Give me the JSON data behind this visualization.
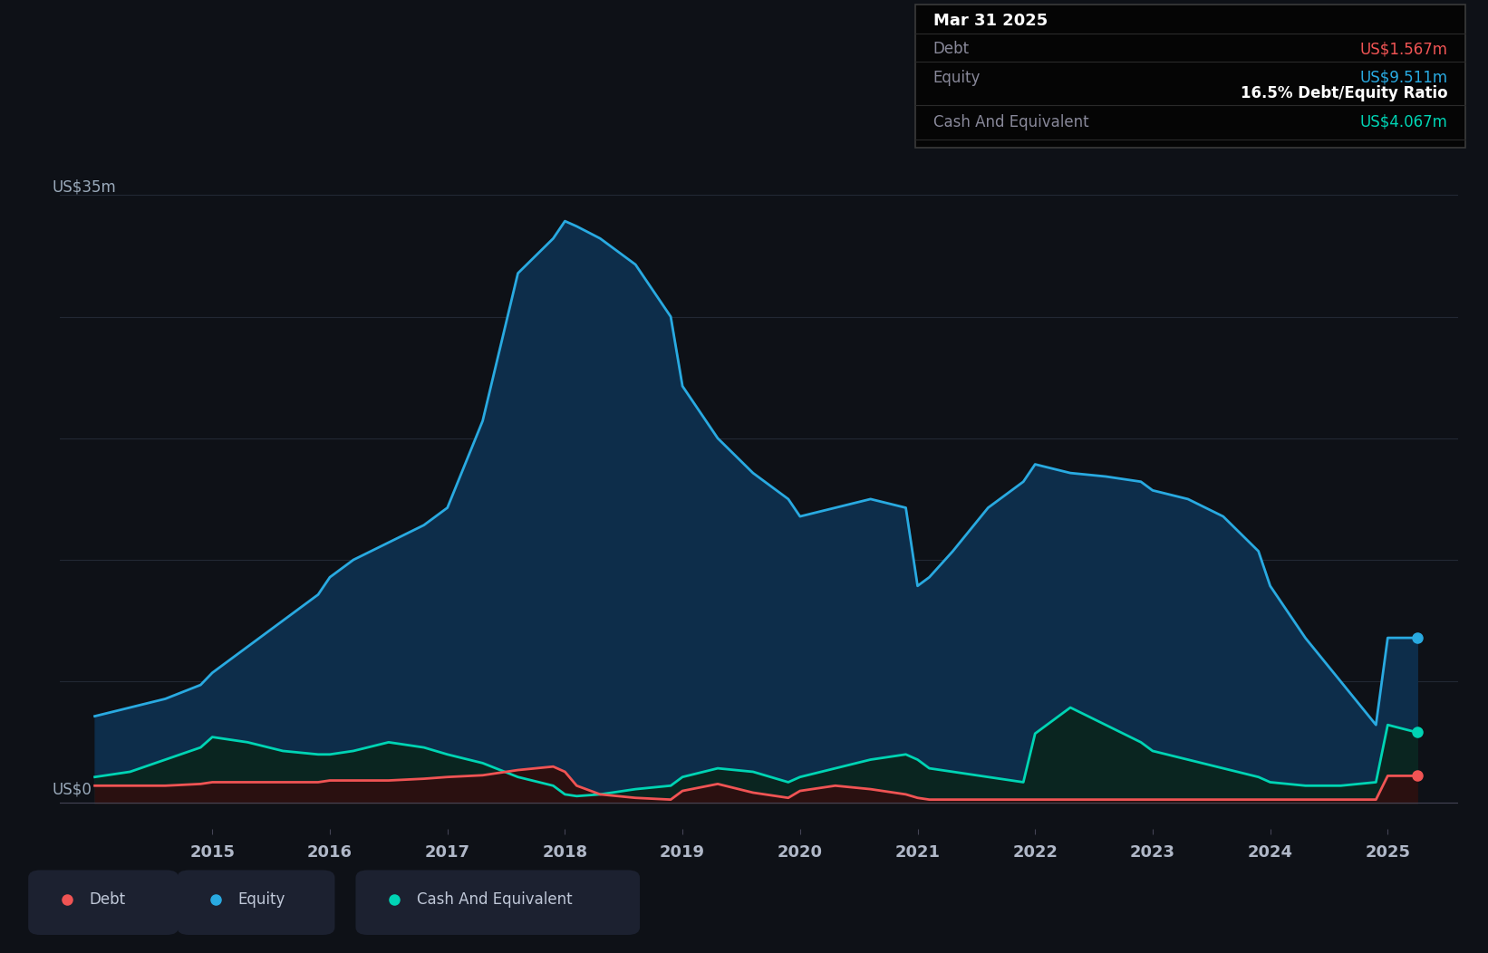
{
  "bg_color": "#0e1117",
  "plot_bg_color": "#0e1117",
  "ylabel_top": "US$35m",
  "ylabel_zero": "US$0",
  "x_min": 2013.7,
  "x_max": 2025.6,
  "y_min": -1.5,
  "y_max": 38,
  "grid_color": "#252b38",
  "equity_color": "#29aae1",
  "equity_fill": "#0d2d4a",
  "debt_color": "#f05454",
  "cash_color": "#00d4b4",
  "cash_fill": "#0a2520",
  "tooltip_bg": "#050505",
  "tooltip_title": "Mar 31 2025",
  "tooltip_debt_label": "Debt",
  "tooltip_debt_value": "US$1.567m",
  "tooltip_equity_label": "Equity",
  "tooltip_equity_value": "US$9.511m",
  "tooltip_ratio": "16.5% Debt/Equity Ratio",
  "tooltip_cash_label": "Cash And Equivalent",
  "tooltip_cash_value": "US$4.067m",
  "legend_bg": "#1c2130",
  "years": [
    2014.0,
    2014.3,
    2014.6,
    2014.9,
    2015.0,
    2015.3,
    2015.6,
    2015.9,
    2016.0,
    2016.2,
    2016.5,
    2016.8,
    2017.0,
    2017.3,
    2017.6,
    2017.9,
    2018.0,
    2018.1,
    2018.3,
    2018.6,
    2018.9,
    2019.0,
    2019.3,
    2019.6,
    2019.9,
    2020.0,
    2020.3,
    2020.6,
    2020.9,
    2021.0,
    2021.1,
    2021.3,
    2021.6,
    2021.9,
    2022.0,
    2022.3,
    2022.6,
    2022.9,
    2023.0,
    2023.3,
    2023.6,
    2023.9,
    2024.0,
    2024.3,
    2024.6,
    2024.9,
    2025.0,
    2025.25
  ],
  "equity": [
    5.0,
    5.5,
    6.0,
    6.8,
    7.5,
    9.0,
    10.5,
    12.0,
    13.0,
    14.0,
    15.0,
    16.0,
    17.0,
    22.0,
    30.5,
    32.5,
    33.5,
    33.2,
    32.5,
    31.0,
    28.0,
    24.0,
    21.0,
    19.0,
    17.5,
    16.5,
    17.0,
    17.5,
    17.0,
    12.5,
    13.0,
    14.5,
    17.0,
    18.5,
    19.5,
    19.0,
    18.8,
    18.5,
    18.0,
    17.5,
    16.5,
    14.5,
    12.5,
    9.5,
    7.0,
    4.5,
    9.511,
    9.511
  ],
  "debt": [
    1.0,
    1.0,
    1.0,
    1.1,
    1.2,
    1.2,
    1.2,
    1.2,
    1.3,
    1.3,
    1.3,
    1.4,
    1.5,
    1.6,
    1.9,
    2.1,
    1.8,
    1.0,
    0.5,
    0.3,
    0.2,
    0.7,
    1.1,
    0.6,
    0.3,
    0.7,
    1.0,
    0.8,
    0.5,
    0.3,
    0.2,
    0.2,
    0.2,
    0.2,
    0.2,
    0.2,
    0.2,
    0.2,
    0.2,
    0.2,
    0.2,
    0.2,
    0.2,
    0.2,
    0.2,
    0.2,
    1.567,
    1.567
  ],
  "cash": [
    1.5,
    1.8,
    2.5,
    3.2,
    3.8,
    3.5,
    3.0,
    2.8,
    2.8,
    3.0,
    3.5,
    3.2,
    2.8,
    2.3,
    1.5,
    1.0,
    0.5,
    0.4,
    0.5,
    0.8,
    1.0,
    1.5,
    2.0,
    1.8,
    1.2,
    1.5,
    2.0,
    2.5,
    2.8,
    2.5,
    2.0,
    1.8,
    1.5,
    1.2,
    4.0,
    5.5,
    4.5,
    3.5,
    3.0,
    2.5,
    2.0,
    1.5,
    1.2,
    1.0,
    1.0,
    1.2,
    4.5,
    4.067
  ],
  "x_tick_labels": [
    "2015",
    "2016",
    "2017",
    "2018",
    "2019",
    "2020",
    "2021",
    "2022",
    "2023",
    "2024",
    "2025"
  ],
  "x_tick_positions": [
    2015.0,
    2016.0,
    2017.0,
    2018.0,
    2019.0,
    2020.0,
    2021.0,
    2022.0,
    2023.0,
    2024.0,
    2025.0
  ],
  "gridline_y": [
    0,
    7,
    14,
    21,
    28,
    35
  ]
}
